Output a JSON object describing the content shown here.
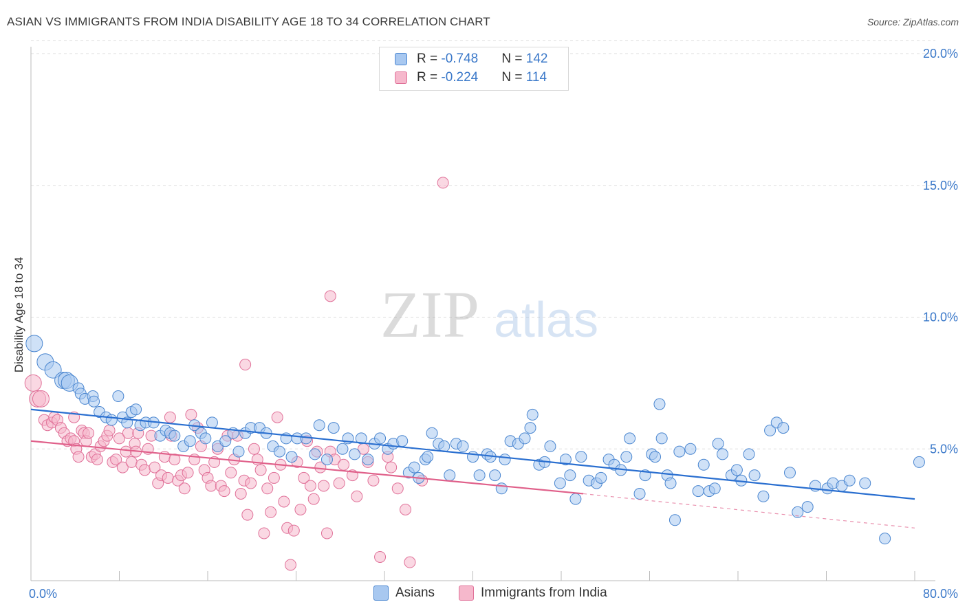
{
  "title": "ASIAN VS IMMIGRANTS FROM INDIA DISABILITY AGE 18 TO 34 CORRELATION CHART",
  "source": "Source: ZipAtlas.com",
  "watermark": {
    "zip": "ZIP",
    "atlas": "atlas"
  },
  "colors": {
    "asian_fill": "#a8c8f0",
    "asian_stroke": "#4a86d0",
    "asian_line": "#2a6fd0",
    "india_fill": "#f6b8cc",
    "india_stroke": "#e07098",
    "india_line": "#e0608a",
    "value_text": "#3a78c9",
    "grid": "#dddddd"
  },
  "legend": [
    {
      "r_label": "R = ",
      "r_value": "-0.748",
      "n_label": "N = ",
      "n_value": "142"
    },
    {
      "r_label": "R = ",
      "r_value": "-0.224",
      "n_label": "N = ",
      "n_value": "114"
    }
  ],
  "bottom_legend": [
    "Asians",
    "Immigrants from India"
  ],
  "chart_data": {
    "type": "scatter",
    "title": "ASIAN VS IMMIGRANTS FROM INDIA DISABILITY AGE 18 TO 34 CORRELATION CHART",
    "ylabel": "Disability Age 18 to 34",
    "xlim": [
      0,
      80
    ],
    "ylim": [
      0,
      20
    ],
    "x_tick_labels": [
      "0.0%",
      "80.0%"
    ],
    "y_tick_labels": [
      "5.0%",
      "10.0%",
      "15.0%",
      "20.0%"
    ],
    "y_ticks": [
      5,
      10,
      15,
      20
    ],
    "grid": "horizontal dashed",
    "series": [
      {
        "name": "Asians",
        "r": -0.748,
        "n": 142,
        "trend": {
          "x": [
            0,
            80
          ],
          "y": [
            6.5,
            3.1
          ]
        },
        "points": [
          [
            0.3,
            9.0
          ],
          [
            1.3,
            8.3
          ],
          [
            2,
            8.0
          ],
          [
            2.9,
            7.6
          ],
          [
            3.2,
            7.6
          ],
          [
            3.5,
            7.5
          ],
          [
            4.3,
            7.3
          ],
          [
            4.5,
            7.1
          ],
          [
            4.9,
            6.9
          ],
          [
            5.6,
            7.0
          ],
          [
            5.7,
            6.8
          ],
          [
            6.2,
            6.4
          ],
          [
            6.8,
            6.2
          ],
          [
            7.3,
            6.1
          ],
          [
            7.9,
            7.0
          ],
          [
            8.3,
            6.2
          ],
          [
            8.7,
            6.0
          ],
          [
            9.1,
            6.4
          ],
          [
            9.5,
            6.5
          ],
          [
            9.9,
            5.9
          ],
          [
            10.4,
            6.0
          ],
          [
            11.1,
            6.0
          ],
          [
            11.7,
            5.5
          ],
          [
            12.2,
            5.7
          ],
          [
            12.6,
            5.6
          ],
          [
            13.0,
            5.5
          ],
          [
            13.8,
            5.1
          ],
          [
            14.4,
            5.3
          ],
          [
            14.8,
            5.9
          ],
          [
            15.4,
            5.6
          ],
          [
            15.8,
            5.4
          ],
          [
            16.4,
            6.0
          ],
          [
            16.9,
            5.1
          ],
          [
            17.6,
            5.3
          ],
          [
            18.3,
            5.6
          ],
          [
            18.8,
            4.9
          ],
          [
            19.4,
            5.6
          ],
          [
            19.9,
            5.8
          ],
          [
            20.7,
            5.8
          ],
          [
            21.3,
            5.6
          ],
          [
            21.9,
            5.1
          ],
          [
            22.5,
            4.9
          ],
          [
            23.1,
            5.4
          ],
          [
            23.6,
            4.7
          ],
          [
            24.1,
            5.4
          ],
          [
            24.9,
            5.4
          ],
          [
            25.7,
            4.8
          ],
          [
            26.1,
            5.9
          ],
          [
            26.8,
            4.6
          ],
          [
            27.4,
            5.8
          ],
          [
            28.2,
            5.0
          ],
          [
            28.7,
            5.4
          ],
          [
            29.3,
            4.8
          ],
          [
            29.9,
            5.4
          ],
          [
            30.5,
            4.6
          ],
          [
            31.1,
            5.2
          ],
          [
            31.6,
            5.4
          ],
          [
            32.3,
            5.0
          ],
          [
            32.8,
            5.2
          ],
          [
            33.6,
            5.3
          ],
          [
            34.2,
            4.1
          ],
          [
            34.7,
            4.3
          ],
          [
            35.1,
            3.9
          ],
          [
            35.7,
            4.6
          ],
          [
            35.9,
            4.7
          ],
          [
            36.3,
            5.6
          ],
          [
            36.9,
            5.2
          ],
          [
            37.4,
            5.1
          ],
          [
            37.9,
            4.0
          ],
          [
            38.5,
            5.2
          ],
          [
            39.1,
            5.1
          ],
          [
            40.0,
            4.7
          ],
          [
            40.6,
            4.0
          ],
          [
            41.3,
            4.8
          ],
          [
            41.6,
            4.7
          ],
          [
            42.0,
            4.0
          ],
          [
            42.6,
            3.5
          ],
          [
            42.9,
            4.6
          ],
          [
            43.4,
            5.3
          ],
          [
            44.1,
            5.2
          ],
          [
            44.7,
            5.4
          ],
          [
            45.2,
            5.8
          ],
          [
            46.0,
            4.4
          ],
          [
            46.5,
            4.5
          ],
          [
            47.0,
            5.1
          ],
          [
            47.9,
            3.7
          ],
          [
            48.4,
            4.6
          ],
          [
            48.8,
            4.0
          ],
          [
            49.3,
            3.1
          ],
          [
            49.8,
            4.7
          ],
          [
            50.5,
            3.8
          ],
          [
            51.2,
            3.7
          ],
          [
            51.6,
            3.9
          ],
          [
            52.3,
            4.6
          ],
          [
            52.8,
            4.4
          ],
          [
            53.4,
            4.2
          ],
          [
            53.9,
            4.7
          ],
          [
            54.2,
            5.4
          ],
          [
            55.1,
            3.3
          ],
          [
            55.6,
            4.0
          ],
          [
            56.2,
            4.8
          ],
          [
            56.5,
            4.7
          ],
          [
            57.1,
            5.4
          ],
          [
            57.6,
            4.0
          ],
          [
            57.9,
            3.7
          ],
          [
            58.3,
            2.3
          ],
          [
            58.7,
            4.9
          ],
          [
            59.7,
            5.0
          ],
          [
            60.4,
            3.4
          ],
          [
            60.9,
            4.4
          ],
          [
            61.4,
            3.4
          ],
          [
            61.9,
            3.5
          ],
          [
            62.2,
            5.2
          ],
          [
            62.6,
            4.8
          ],
          [
            63.4,
            4.0
          ],
          [
            63.9,
            4.2
          ],
          [
            64.3,
            3.8
          ],
          [
            65.0,
            4.8
          ],
          [
            65.5,
            4.0
          ],
          [
            66.3,
            3.2
          ],
          [
            66.9,
            5.7
          ],
          [
            67.5,
            6.0
          ],
          [
            68.1,
            5.8
          ],
          [
            68.7,
            4.1
          ],
          [
            69.4,
            2.6
          ],
          [
            70.3,
            2.8
          ],
          [
            71.0,
            3.6
          ],
          [
            72.1,
            3.5
          ],
          [
            72.6,
            3.7
          ],
          [
            73.4,
            3.6
          ],
          [
            74.1,
            3.8
          ],
          [
            75.5,
            3.7
          ],
          [
            77.3,
            1.6
          ],
          [
            80.4,
            4.5
          ],
          [
            56.9,
            6.7
          ],
          [
            45.4,
            6.3
          ]
        ]
      },
      {
        "name": "Immigrants from India",
        "r": -0.224,
        "n": 114,
        "trend_solid": {
          "x": [
            0,
            50
          ],
          "y": [
            5.3,
            3.3
          ]
        },
        "trend_dashed": {
          "x": [
            50,
            80
          ],
          "y": [
            3.3,
            2.0
          ]
        },
        "points": [
          [
            0.2,
            7.5
          ],
          [
            0.6,
            6.9
          ],
          [
            0.9,
            6.9
          ],
          [
            1.2,
            6.1
          ],
          [
            1.5,
            5.9
          ],
          [
            1.9,
            6.0
          ],
          [
            2.1,
            6.2
          ],
          [
            2.4,
            6.1
          ],
          [
            2.7,
            5.8
          ],
          [
            3.0,
            5.6
          ],
          [
            3.3,
            5.3
          ],
          [
            3.6,
            5.4
          ],
          [
            3.9,
            5.3
          ],
          [
            4.1,
            5.0
          ],
          [
            4.3,
            4.7
          ],
          [
            4.6,
            5.7
          ],
          [
            4.8,
            5.6
          ],
          [
            5.0,
            5.3
          ],
          [
            5.2,
            5.6
          ],
          [
            5.5,
            4.7
          ],
          [
            5.8,
            4.8
          ],
          [
            6.0,
            4.6
          ],
          [
            6.3,
            5.1
          ],
          [
            6.6,
            5.3
          ],
          [
            6.9,
            5.5
          ],
          [
            7.1,
            5.7
          ],
          [
            7.4,
            4.5
          ],
          [
            7.7,
            4.6
          ],
          [
            8.0,
            5.4
          ],
          [
            8.3,
            4.3
          ],
          [
            8.6,
            4.9
          ],
          [
            8.8,
            5.6
          ],
          [
            9.1,
            4.5
          ],
          [
            9.4,
            5.2
          ],
          [
            9.7,
            5.6
          ],
          [
            10.0,
            4.4
          ],
          [
            10.3,
            4.2
          ],
          [
            10.6,
            5.0
          ],
          [
            10.9,
            5.5
          ],
          [
            11.2,
            4.3
          ],
          [
            11.5,
            3.7
          ],
          [
            11.8,
            4.0
          ],
          [
            12.1,
            4.7
          ],
          [
            12.4,
            3.9
          ],
          [
            12.7,
            5.5
          ],
          [
            13.0,
            4.6
          ],
          [
            13.3,
            3.8
          ],
          [
            13.6,
            4.0
          ],
          [
            13.9,
            3.5
          ],
          [
            14.2,
            4.1
          ],
          [
            14.5,
            6.3
          ],
          [
            14.8,
            4.6
          ],
          [
            15.1,
            5.8
          ],
          [
            15.4,
            5.1
          ],
          [
            15.7,
            4.2
          ],
          [
            16.0,
            3.9
          ],
          [
            16.3,
            3.6
          ],
          [
            16.6,
            4.5
          ],
          [
            16.9,
            5.0
          ],
          [
            17.2,
            3.6
          ],
          [
            17.5,
            3.4
          ],
          [
            17.8,
            5.5
          ],
          [
            18.1,
            4.1
          ],
          [
            18.4,
            4.6
          ],
          [
            18.7,
            5.5
          ],
          [
            19.0,
            3.3
          ],
          [
            19.3,
            3.8
          ],
          [
            19.6,
            2.5
          ],
          [
            19.9,
            3.7
          ],
          [
            20.2,
            5.0
          ],
          [
            20.5,
            4.6
          ],
          [
            20.8,
            4.2
          ],
          [
            21.1,
            1.8
          ],
          [
            21.4,
            3.5
          ],
          [
            21.7,
            2.6
          ],
          [
            22.0,
            3.9
          ],
          [
            22.3,
            6.2
          ],
          [
            22.6,
            4.4
          ],
          [
            22.9,
            3.0
          ],
          [
            23.2,
            2.0
          ],
          [
            23.5,
            0.6
          ],
          [
            23.8,
            1.9
          ],
          [
            24.1,
            4.5
          ],
          [
            24.4,
            2.7
          ],
          [
            24.7,
            3.9
          ],
          [
            25.0,
            5.3
          ],
          [
            25.3,
            3.6
          ],
          [
            25.6,
            3.1
          ],
          [
            25.9,
            4.9
          ],
          [
            26.2,
            4.3
          ],
          [
            26.5,
            3.6
          ],
          [
            26.8,
            1.8
          ],
          [
            27.1,
            4.9
          ],
          [
            27.5,
            4.6
          ],
          [
            27.9,
            3.7
          ],
          [
            28.3,
            4.4
          ],
          [
            29.1,
            4.0
          ],
          [
            29.5,
            3.2
          ],
          [
            30.1,
            5.0
          ],
          [
            30.5,
            4.5
          ],
          [
            31.0,
            3.8
          ],
          [
            31.6,
            0.9
          ],
          [
            32.3,
            4.7
          ],
          [
            32.6,
            4.3
          ],
          [
            33.2,
            3.5
          ],
          [
            33.9,
            2.7
          ],
          [
            34.3,
            0.7
          ],
          [
            35.4,
            3.8
          ],
          [
            37.3,
            15.1
          ],
          [
            19.4,
            8.2
          ],
          [
            27.1,
            10.8
          ],
          [
            12.6,
            6.2
          ],
          [
            9.5,
            4.9
          ],
          [
            3.9,
            6.2
          ]
        ]
      }
    ]
  }
}
